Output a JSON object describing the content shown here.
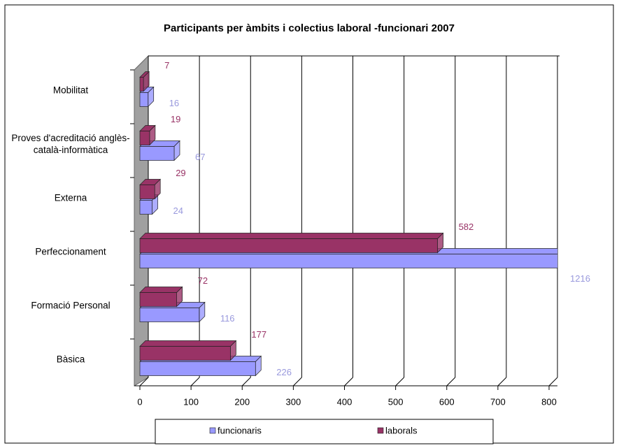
{
  "chart_data": {
    "type": "bar3d_horizontal",
    "title": "Participants per àmbits i colectius laboral -funcionari 2007",
    "categories": [
      "Mobilitat",
      "Proves d'acreditació anglès-català-informàtica",
      "Externa",
      "Perfeccionament",
      "Formació Personal",
      "Bàsica"
    ],
    "series": [
      {
        "name": "funcionaris",
        "color": "#9999ff",
        "label_color": "#9999dd",
        "values": [
          16,
          67,
          24,
          1216,
          116,
          226
        ]
      },
      {
        "name": "laborals",
        "color": "#993366",
        "label_color": "#993366",
        "values": [
          7,
          19,
          29,
          582,
          72,
          177
        ]
      }
    ],
    "xlim": [
      0,
      800
    ],
    "xticks": [
      0,
      100,
      200,
      300,
      400,
      500,
      600,
      700,
      800
    ],
    "grid": true,
    "legend": "bottom"
  }
}
